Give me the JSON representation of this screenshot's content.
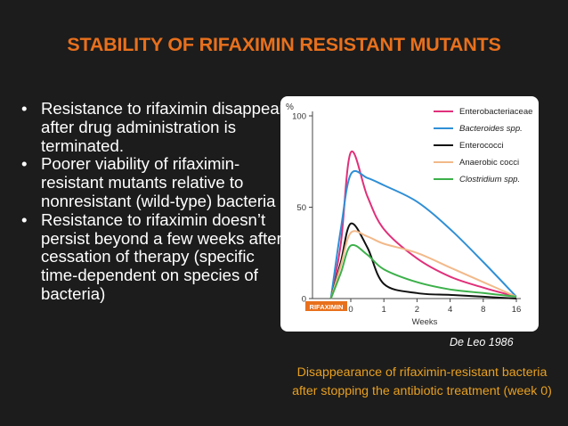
{
  "slide": {
    "title": "STABILITY OF RIFAXIMIN RESISTANT MUTANTS",
    "bullets": [
      "Resistance to rifaximin disappear after drug administration is terminated.",
      "Poorer viability of rifaximin-resistant mutants relative to nonresistant (wild-type) bacteria",
      "Resistance to rifaximin doesn’t persist beyond a few weeks after cessation of therapy (specific time-dependent on species of bacteria)"
    ],
    "source": "De Leo 1986",
    "caption": "Disappearance of rifaximin-resistant bacteria after stopping the antibiotic treatment (week 0)"
  },
  "colors": {
    "background": "#1c1c1c",
    "title": "#e8701c",
    "caption": "#e8a020",
    "rifaximin_label_bg": "#e8701c"
  },
  "chart_data": {
    "type": "line",
    "ylabel_unit": "%",
    "xlabel": "Weeks",
    "x_ticks": [
      "0",
      "1",
      "2",
      "4",
      "8",
      "16"
    ],
    "y_ticks": [
      "0",
      "50",
      "100"
    ],
    "ylim": [
      0,
      100
    ],
    "annotation": "RIFAXIMIN",
    "legend_position": "top-right",
    "series": [
      {
        "name": "Enterobacteriaceae",
        "italic": false,
        "color": "#e0307a",
        "points": [
          [
            -0.6,
            0
          ],
          [
            -0.3,
            30
          ],
          [
            0,
            80
          ],
          [
            0.5,
            56
          ],
          [
            1,
            38
          ],
          [
            2,
            22
          ],
          [
            4,
            12
          ],
          [
            8,
            6
          ],
          [
            16,
            1
          ]
        ]
      },
      {
        "name": "Bacteroides spp.",
        "italic": true,
        "color": "#2f8fd6",
        "points": [
          [
            -0.6,
            0
          ],
          [
            -0.3,
            38
          ],
          [
            0,
            68
          ],
          [
            0.5,
            66
          ],
          [
            1,
            62
          ],
          [
            2,
            53
          ],
          [
            4,
            38
          ],
          [
            8,
            20
          ],
          [
            16,
            1
          ]
        ]
      },
      {
        "name": "Enterococci",
        "italic": false,
        "color": "#111111",
        "points": [
          [
            -0.6,
            0
          ],
          [
            -0.3,
            20
          ],
          [
            0,
            41
          ],
          [
            0.5,
            28
          ],
          [
            1,
            8
          ],
          [
            2,
            3
          ],
          [
            4,
            2
          ],
          [
            8,
            1
          ],
          [
            16,
            0
          ]
        ]
      },
      {
        "name": "Anaerobic cocci",
        "italic": false,
        "color": "#f2b98a",
        "points": [
          [
            -0.6,
            0
          ],
          [
            -0.3,
            18
          ],
          [
            0,
            36
          ],
          [
            0.5,
            34
          ],
          [
            1,
            30
          ],
          [
            2,
            25
          ],
          [
            4,
            17
          ],
          [
            8,
            9
          ],
          [
            16,
            1
          ]
        ]
      },
      {
        "name": "Clostridium spp.",
        "italic": true,
        "color": "#3cb04a",
        "points": [
          [
            -0.6,
            0
          ],
          [
            -0.3,
            14
          ],
          [
            0,
            29
          ],
          [
            0.5,
            24
          ],
          [
            1,
            16
          ],
          [
            2,
            9
          ],
          [
            4,
            5
          ],
          [
            8,
            3
          ],
          [
            16,
            1
          ]
        ]
      }
    ]
  }
}
